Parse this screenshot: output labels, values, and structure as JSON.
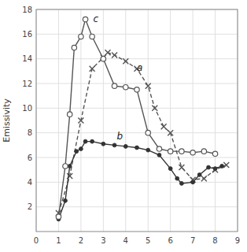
{
  "chart_data": {
    "type": "line",
    "ylabel": "Emissivity",
    "xlim": [
      0,
      9
    ],
    "ylim": [
      0,
      18
    ],
    "xticks": [
      0,
      1,
      2,
      3,
      4,
      5,
      6,
      7,
      8,
      9
    ],
    "yticks": [
      2,
      4,
      6,
      8,
      10,
      12,
      14,
      16,
      18
    ],
    "grid": true,
    "series": [
      {
        "color": "#555555",
        "marker": "x",
        "line_style": "dashed",
        "x": [
          1.0,
          1.5,
          2.0,
          2.5,
          3.0,
          3.2,
          3.5,
          4.0,
          4.5,
          5.0,
          5.3,
          5.7,
          6.0,
          6.5,
          7.0,
          7.5,
          8.0,
          8.5
        ],
        "values": [
          1.5,
          4.5,
          9.0,
          13.2,
          14.1,
          14.5,
          14.3,
          13.8,
          13.2,
          11.8,
          10.0,
          8.5,
          8.0,
          5.2,
          4.2,
          4.3,
          5.0,
          5.4
        ]
      },
      {
        "color": "#333333",
        "marker": "circle",
        "line_style": "solid",
        "x": [
          1.0,
          1.3,
          1.5,
          1.8,
          2.0,
          2.2,
          2.5,
          3.0,
          3.5,
          4.0,
          4.5,
          5.0,
          5.5,
          6.0,
          6.3,
          6.5,
          7.0,
          7.3,
          7.7,
          8.0,
          8.3
        ],
        "values": [
          1.0,
          2.5,
          5.3,
          6.5,
          6.7,
          7.3,
          7.3,
          7.1,
          7.0,
          6.9,
          6.8,
          6.6,
          6.2,
          5.1,
          4.3,
          3.9,
          4.0,
          4.6,
          5.2,
          5.1,
          5.3
        ]
      },
      {
        "color": "#555555",
        "marker": "circle-open",
        "line_style": "solid",
        "x": [
          1.0,
          1.3,
          1.5,
          1.7,
          2.0,
          2.2,
          2.5,
          3.0,
          3.5,
          4.0,
          4.5,
          5.0,
          5.5,
          6.0,
          6.5,
          7.0,
          7.5,
          8.0
        ],
        "values": [
          1.2,
          5.3,
          9.5,
          14.9,
          15.8,
          17.2,
          15.8,
          14.0,
          11.8,
          11.7,
          11.5,
          8.0,
          6.7,
          6.5,
          6.5,
          6.4,
          6.5,
          6.3
        ]
      }
    ],
    "annotations": [
      {
        "text": "c",
        "x": 2.55,
        "y": 17.0
      },
      {
        "text": "a",
        "x": 4.5,
        "y": 13.0
      },
      {
        "text": "b",
        "x": 3.6,
        "y": 7.5
      }
    ]
  }
}
